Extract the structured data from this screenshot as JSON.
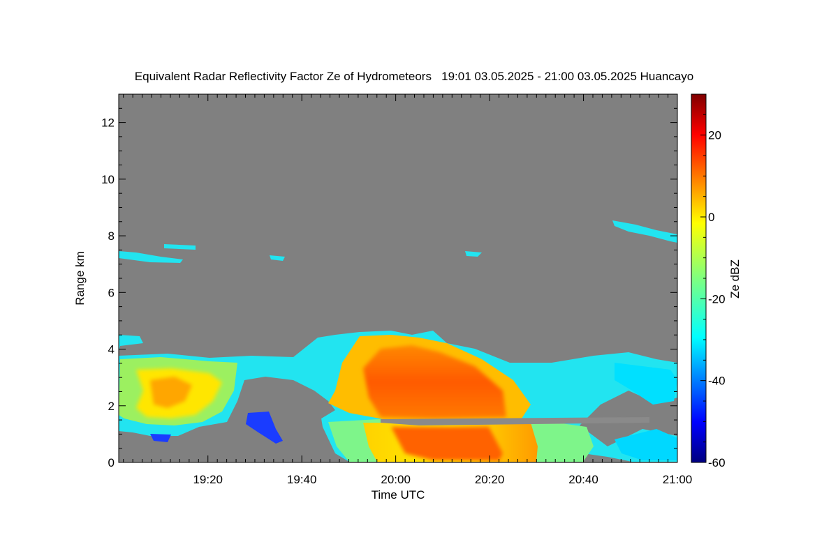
{
  "chart_data": {
    "type": "heatmap",
    "title": "Equivalent Radar Reflectivity Factor Ze of Hydrometeors   19:01 03.05.2025 - 21:00 03.05.2025 Huancayo",
    "xlabel": "Time UTC",
    "ylabel": "Range km",
    "x_ticks": [
      "19:20",
      "19:40",
      "20:00",
      "20:20",
      "20:40",
      "21:00"
    ],
    "x_tick_minutes": [
      20,
      40,
      60,
      80,
      100,
      120
    ],
    "xlim_minutes": [
      1,
      120
    ],
    "y_ticks": [
      0,
      2,
      4,
      6,
      8,
      10,
      12
    ],
    "ylim": [
      0,
      13
    ],
    "colorbar": {
      "label": "Ze dBZ",
      "ticks": [
        20,
        0,
        -20,
        -40,
        -60
      ],
      "range": [
        -60,
        30
      ],
      "colormap": "jet"
    },
    "background_color": "#808080",
    "features": [
      {
        "desc": "main cloud/precip base",
        "time_start": "19:01",
        "time_end": "21:00",
        "top_km": 4.0,
        "bottom_km": 0.0
      },
      {
        "desc": "strongest echo core",
        "time_start": "19:55",
        "time_end": "20:25",
        "range_km": [
          1.7,
          4.5
        ],
        "max_dBZ": 15
      },
      {
        "desc": "melting layer / bright band",
        "range_km": 1.5
      },
      {
        "desc": "thin cirrus layer",
        "time_start": "19:01",
        "time_end": "19:20",
        "range_km": [
          7.1,
          7.8
        ],
        "dBZ": -25
      },
      {
        "desc": "thin cirrus layer",
        "time_start": "20:47",
        "time_end": "21:00",
        "range_km": [
          7.8,
          8.5
        ],
        "dBZ": -25
      }
    ]
  }
}
